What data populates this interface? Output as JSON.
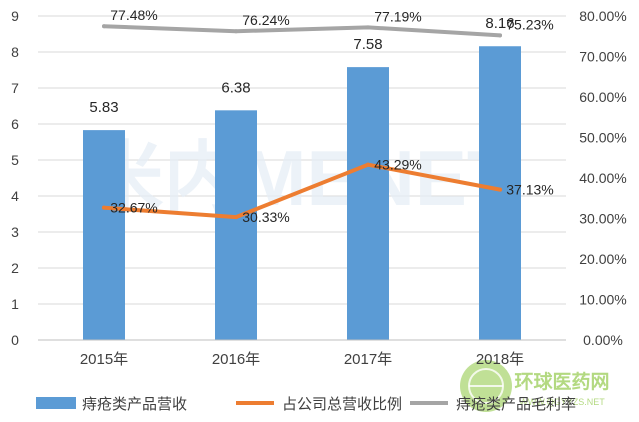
{
  "chart_data": {
    "type": "bar",
    "categories": [
      "2015年",
      "2016年",
      "2017年",
      "2018年"
    ],
    "y_left": {
      "range": [
        0,
        9
      ],
      "ticks": [
        "0",
        "1",
        "2",
        "3",
        "4",
        "5",
        "6",
        "7",
        "8",
        "9"
      ]
    },
    "y_right": {
      "range": [
        0,
        0.8
      ],
      "ticks": [
        "0.00%",
        "10.00%",
        "20.00%",
        "30.00%",
        "40.00%",
        "50.00%",
        "60.00%",
        "70.00%",
        "80.00%"
      ]
    },
    "series": [
      {
        "name": "痔疮类产品营收",
        "type": "bar",
        "axis": "left",
        "color": "#5b9bd5",
        "values": [
          5.83,
          6.38,
          7.58,
          8.16
        ],
        "labels": [
          "5.83",
          "6.38",
          "7.58",
          "8.16"
        ]
      },
      {
        "name": "占公司总营收比例",
        "type": "line",
        "axis": "right",
        "color": "#ed7d31",
        "values": [
          0.3267,
          0.3033,
          0.4329,
          0.3713
        ],
        "labels": [
          "32.67%",
          "30.33%",
          "43.29%",
          "37.13%"
        ]
      },
      {
        "name": "痔疮类产品毛利率",
        "type": "line",
        "axis": "right",
        "color": "#a5a5a5",
        "values": [
          0.7748,
          0.7624,
          0.7719,
          0.7523
        ],
        "labels": [
          "77.48%",
          "76.24%",
          "77.19%",
          "75.23%"
        ]
      }
    ],
    "legend_position": "bottom",
    "grid": true
  },
  "watermark": {
    "main": "米内MENET",
    "site_cn": "环球医药网",
    "site_url": "WWW.QGYYZS.NET"
  }
}
